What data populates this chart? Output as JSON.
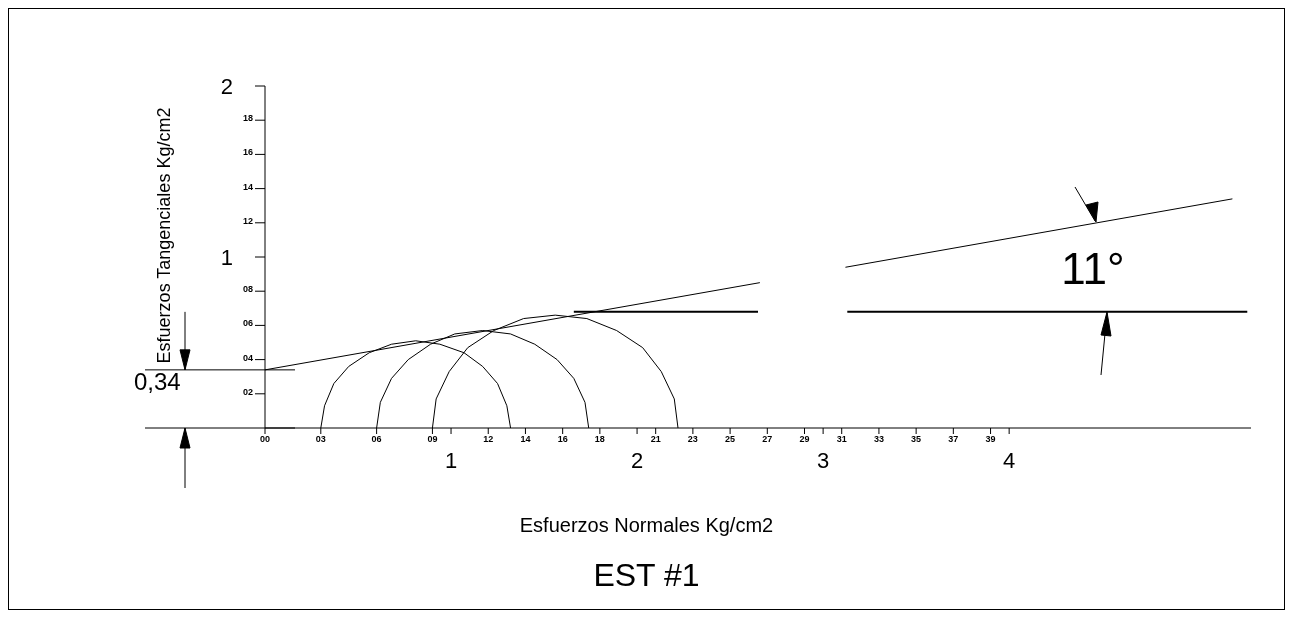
{
  "chart_data": {
    "type": "line",
    "title": "EST #1",
    "xlabel": "Esfuerzos Normales Kg/cm2",
    "ylabel": "Esfuerzos Tangenciales Kg/cm2",
    "xlim": [
      0,
      5.3
    ],
    "ylim": [
      0,
      2
    ],
    "xticks": [
      {
        "value": 0,
        "label": null
      },
      {
        "value": 0.3,
        "label": null
      },
      {
        "value": 0.6,
        "label": null
      },
      {
        "value": 0.9,
        "label": null
      },
      1,
      {
        "value": 1.2,
        "label": null
      },
      {
        "value": 1.4,
        "label": null
      },
      {
        "value": 1.6,
        "label": null
      },
      {
        "value": 1.8,
        "label": null
      },
      2,
      {
        "value": 2.1,
        "label": null
      },
      {
        "value": 2.3,
        "label": null
      },
      {
        "value": 2.5,
        "label": null
      },
      {
        "value": 2.7,
        "label": null
      },
      {
        "value": 2.9,
        "label": null
      },
      3,
      {
        "value": 3.1,
        "label": null
      },
      {
        "value": 3.3,
        "label": null
      },
      {
        "value": 3.5,
        "label": null
      },
      {
        "value": 3.7,
        "label": null
      },
      {
        "value": 3.9,
        "label": null
      },
      4
    ],
    "yticks": [
      {
        "value": 0.2,
        "label": null
      },
      {
        "value": 0.4,
        "label": null
      },
      {
        "value": 0.6,
        "label": null
      },
      {
        "value": 0.8,
        "label": null
      },
      1,
      {
        "value": 1.2,
        "label": null
      },
      {
        "value": 1.4,
        "label": null
      },
      {
        "value": 1.6,
        "label": null
      },
      {
        "value": 1.8,
        "label": null
      },
      2
    ],
    "grid": false,
    "marker": "none",
    "line_style": "solid",
    "annotations": [
      "0,34",
      "11°",
      "00",
      "03",
      "06",
      "09",
      "12",
      "14",
      "16",
      "18",
      "21",
      "23",
      "25",
      "27",
      "29",
      "31",
      "33",
      "35",
      "37",
      "39",
      "02",
      "04",
      "06",
      "08",
      "12",
      "14",
      "16",
      "18"
    ],
    "series": [
      {
        "color": "#000000",
        "x": [
          0.3,
          0.32,
          0.37,
          0.45,
          0.56,
          0.68,
          0.81,
          0.94,
          1.07,
          1.17,
          1.25,
          1.3,
          1.32
        ],
        "values": [
          0,
          0.13,
          0.26,
          0.36,
          0.44,
          0.49,
          0.51,
          0.49,
          0.44,
          0.36,
          0.26,
          0.13,
          0
        ]
      },
      {
        "color": "#000000",
        "x": [
          0.6,
          0.62,
          0.68,
          0.77,
          0.89,
          1.02,
          1.17,
          1.32,
          1.45,
          1.57,
          1.66,
          1.72,
          1.74
        ],
        "values": [
          0,
          0.15,
          0.29,
          0.4,
          0.49,
          0.55,
          0.57,
          0.55,
          0.49,
          0.4,
          0.29,
          0.15,
          0
        ]
      },
      {
        "color": "#000000",
        "x": [
          0.9,
          0.92,
          0.99,
          1.09,
          1.23,
          1.39,
          1.56,
          1.73,
          1.89,
          2.03,
          2.13,
          2.2,
          2.22
        ],
        "values": [
          0,
          0.17,
          0.33,
          0.47,
          0.57,
          0.64,
          0.66,
          0.64,
          0.57,
          0.47,
          0.33,
          0.17,
          0
        ]
      },
      {
        "color": "#000000",
        "x": [
          0,
          2.66,
          2.9,
          3.12,
          5.2
        ],
        "values": [
          0.34,
          0.85,
          null,
          0.94,
          1.34
        ]
      },
      {
        "color": "#000000",
        "x": [
          1.66,
          2.65,
          2.9,
          3.13,
          5.28
        ],
        "values": [
          0.68,
          0.68,
          null,
          0.68,
          0.68
        ]
      }
    ]
  }
}
